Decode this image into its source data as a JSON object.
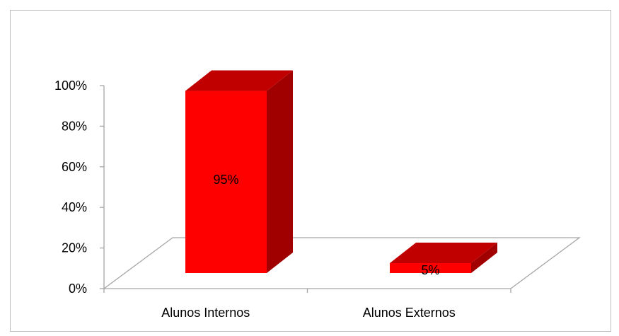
{
  "chart_data": {
    "type": "bar",
    "style": "3d-column",
    "categories": [
      "Alunos Internos",
      "Alunos Externos"
    ],
    "values": [
      95,
      5
    ],
    "data_labels": [
      "95%",
      "5%"
    ],
    "y_ticks": [
      "0%",
      "20%",
      "40%",
      "60%",
      "80%",
      "100%"
    ],
    "ylim": [
      0,
      100
    ],
    "title": "",
    "xlabel": "",
    "ylabel": "",
    "grid": false,
    "legend": "none",
    "colors": {
      "front": "#ff0000",
      "top": "#c00000",
      "side": "#a00000",
      "axis": "#a6a6a6",
      "border": "#bfbfbf"
    }
  }
}
